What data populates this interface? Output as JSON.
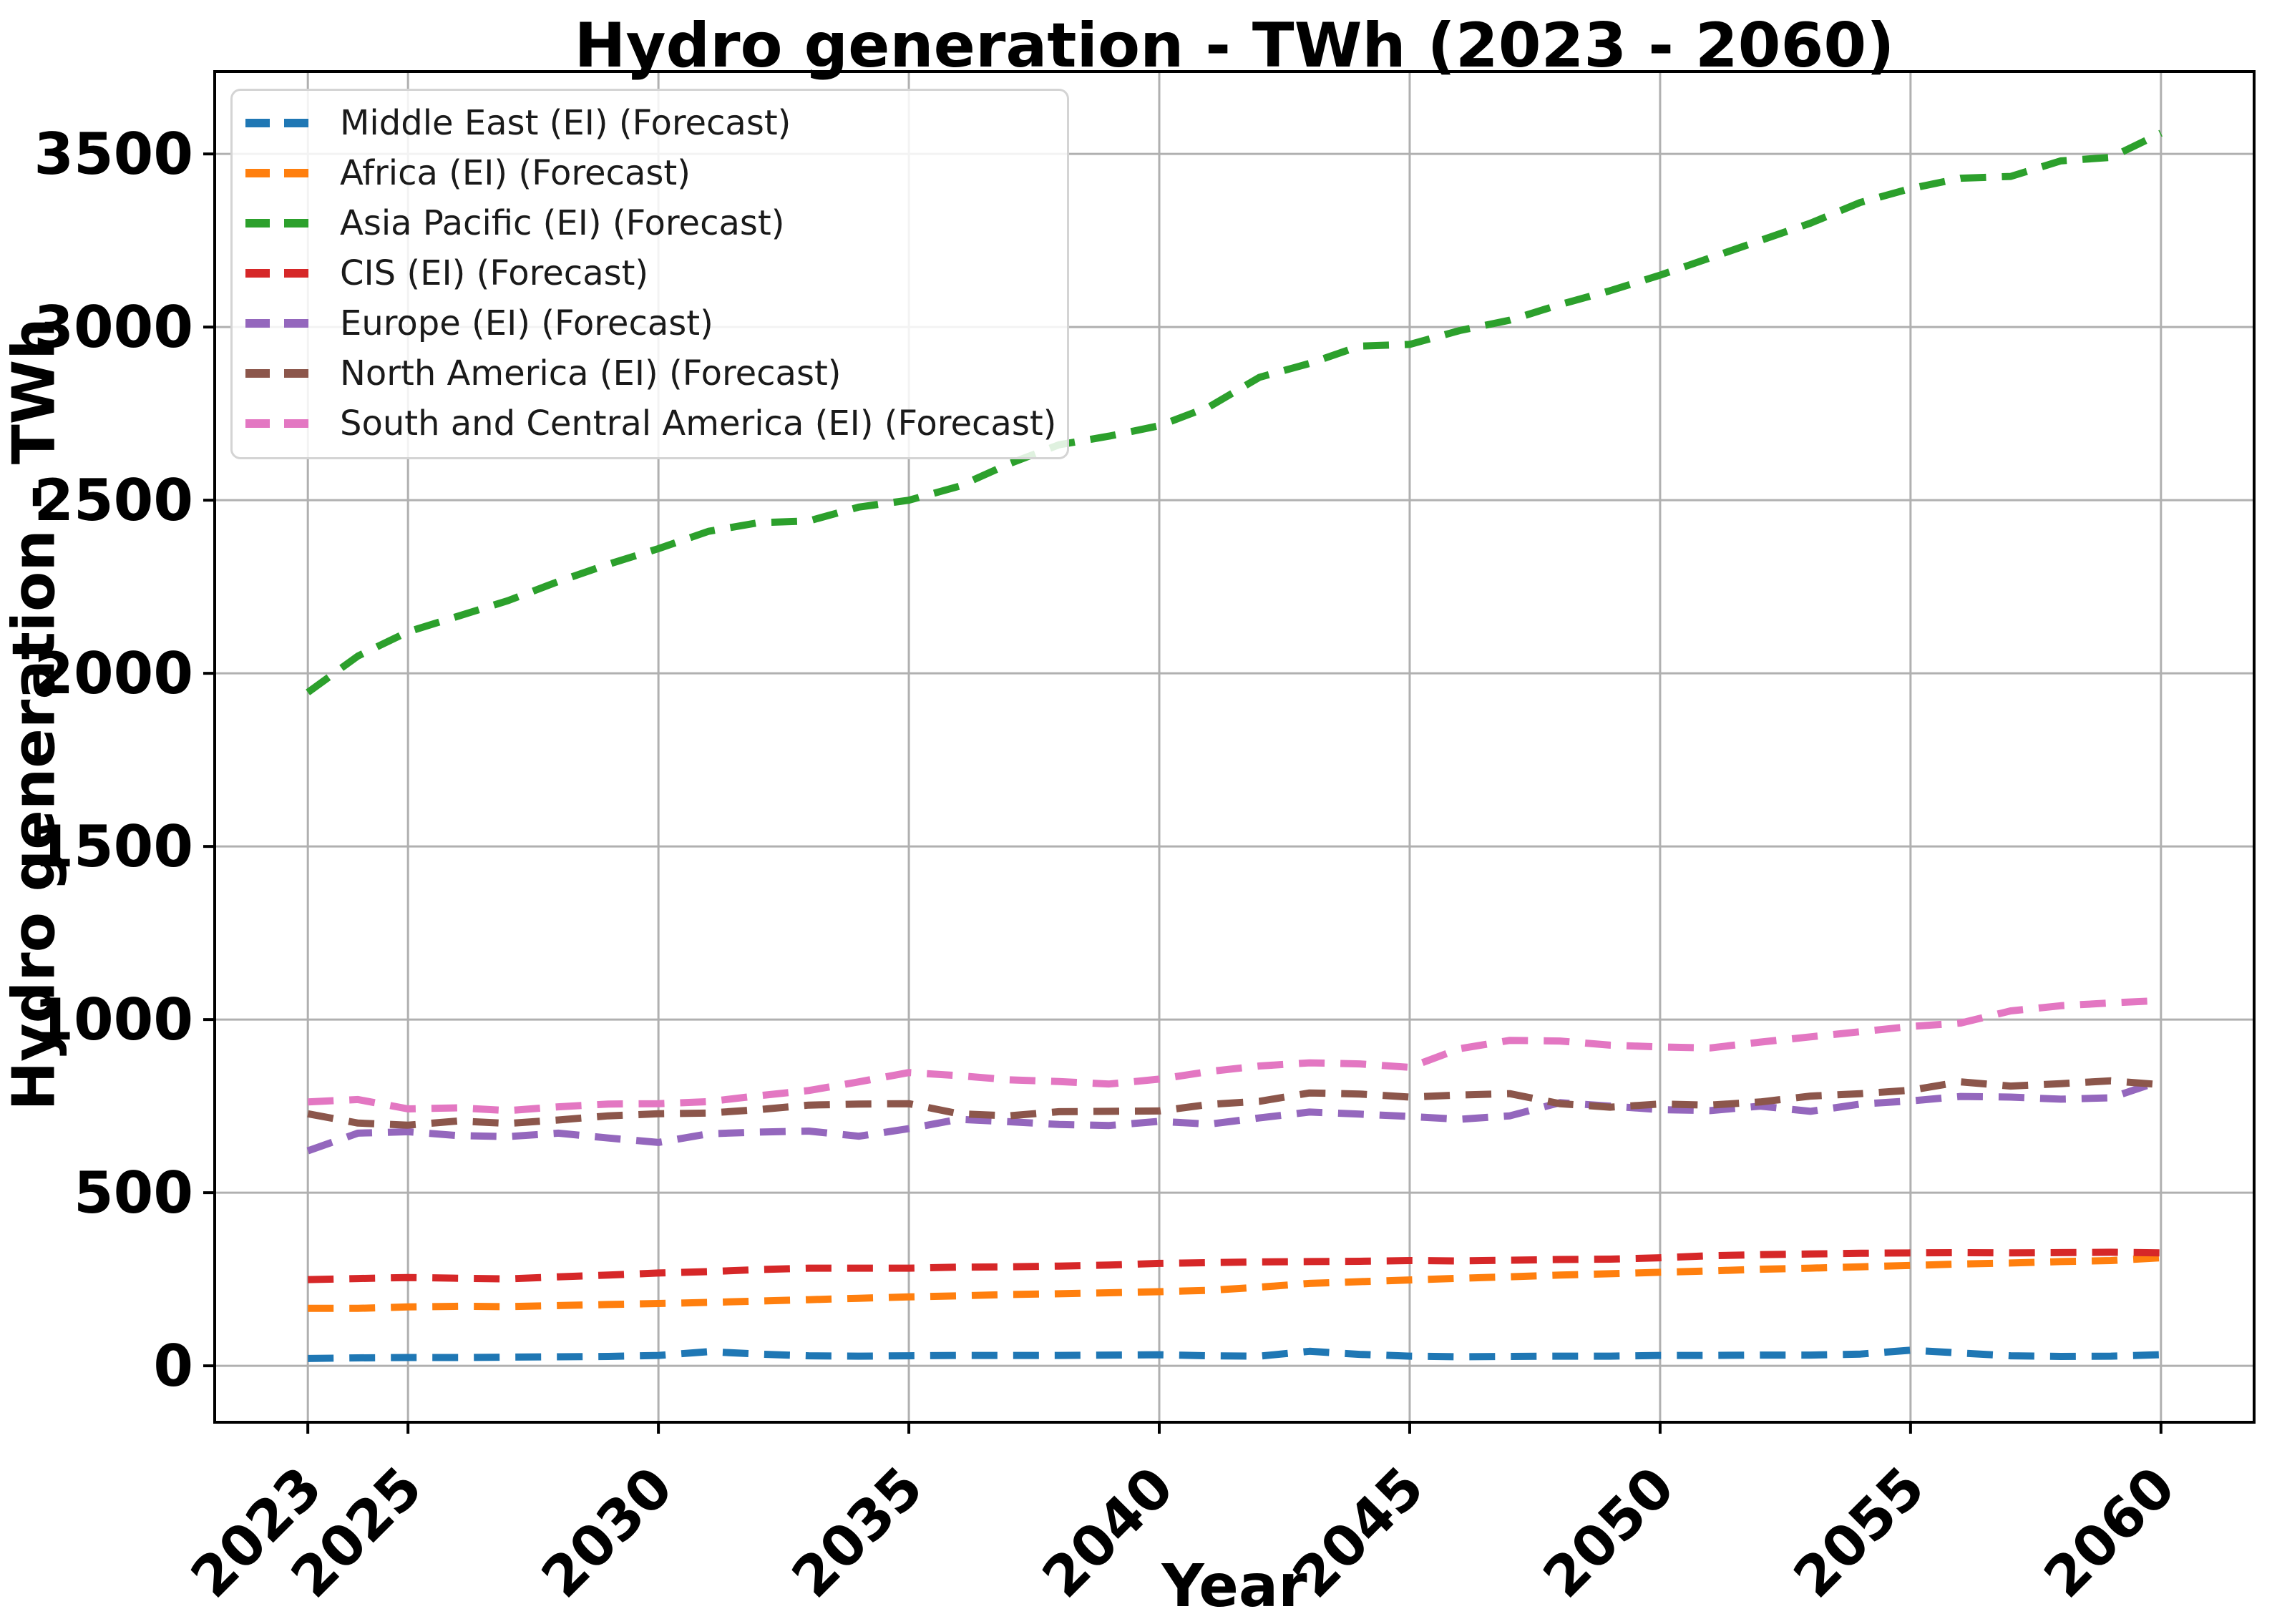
{
  "chart_data": {
    "type": "line",
    "title": "Hydro generation - TWh (2023 - 2060)",
    "xlabel": "Year",
    "ylabel": "Hydro generation - TWh",
    "line_style": "dashed",
    "grid": true,
    "legend_position": "upper left",
    "x": [
      2023,
      2024,
      2025,
      2026,
      2027,
      2028,
      2029,
      2030,
      2031,
      2032,
      2033,
      2034,
      2035,
      2036,
      2037,
      2038,
      2039,
      2040,
      2041,
      2042,
      2043,
      2044,
      2045,
      2046,
      2047,
      2048,
      2049,
      2050,
      2051,
      2052,
      2053,
      2054,
      2055,
      2056,
      2057,
      2058,
      2059,
      2060
    ],
    "xticks": [
      2023,
      2025,
      2030,
      2035,
      2040,
      2045,
      2050,
      2055,
      2060
    ],
    "yticks": [
      0,
      500,
      1000,
      1500,
      2000,
      2500,
      3000,
      3500
    ],
    "xlim": [
      2021.14,
      2061.86
    ],
    "ylim": [
      -163,
      3738
    ],
    "series": [
      {
        "name": "Middle East (EI) (Forecast)",
        "color": "#1f77b4",
        "values": [
          21,
          23,
          24,
          24,
          25,
          26,
          27,
          30,
          41,
          34,
          29,
          28,
          29,
          30,
          30,
          30,
          31,
          32,
          29,
          28,
          42,
          33,
          28,
          26,
          27,
          28,
          28,
          30,
          30,
          31,
          31,
          34,
          45,
          37,
          29,
          27,
          28,
          32
        ]
      },
      {
        "name": "Africa (EI) (Forecast)",
        "color": "#ff7f0e",
        "values": [
          166,
          166,
          170,
          172,
          171,
          174,
          177,
          180,
          183,
          187,
          191,
          195,
          199,
          202,
          206,
          208,
          211,
          214,
          218,
          227,
          238,
          243,
          248,
          253,
          257,
          262,
          266,
          270,
          274,
          279,
          282,
          286,
          290,
          294,
          297,
          301,
          304,
          312
        ]
      },
      {
        "name": "Asia Pacific (EI) (Forecast)",
        "color": "#2ca02c",
        "values": [
          1945,
          2050,
          2120,
          2165,
          2210,
          2265,
          2315,
          2360,
          2410,
          2435,
          2440,
          2480,
          2500,
          2540,
          2605,
          2660,
          2685,
          2715,
          2770,
          2855,
          2895,
          2945,
          2950,
          2990,
          3020,
          3065,
          3105,
          3150,
          3200,
          3250,
          3300,
          3360,
          3400,
          3430,
          3435,
          3480,
          3490,
          3560
        ]
      },
      {
        "name": "CIS (EI) (Forecast)",
        "color": "#d62728",
        "values": [
          249,
          252,
          255,
          253,
          251,
          257,
          262,
          268,
          272,
          278,
          282,
          282,
          282,
          285,
          286,
          288,
          291,
          296,
          298,
          300,
          301,
          302,
          304,
          303,
          305,
          307,
          308,
          312,
          318,
          321,
          323,
          325,
          326,
          327,
          326,
          327,
          328,
          326
        ]
      },
      {
        "name": "Europe (EI) (Forecast)",
        "color": "#9467bd",
        "values": [
          621,
          672,
          676,
          665,
          662,
          672,
          658,
          645,
          670,
          675,
          678,
          663,
          685,
          712,
          705,
          697,
          694,
          706,
          698,
          716,
          733,
          727,
          720,
          712,
          722,
          760,
          750,
          740,
          737,
          750,
          735,
          756,
          765,
          778,
          776,
          770,
          774,
          823
        ]
      },
      {
        "name": "North America (EI) (Forecast)",
        "color": "#8c564b",
        "values": [
          728,
          701,
          695,
          707,
          700,
          710,
          722,
          728,
          730,
          740,
          753,
          756,
          757,
          728,
          722,
          734,
          735,
          736,
          755,
          764,
          788,
          785,
          776,
          782,
          786,
          757,
          747,
          756,
          753,
          762,
          779,
          786,
          796,
          820,
          808,
          815,
          823,
          812
        ]
      },
      {
        "name": "South and Central America (EI) (Forecast)",
        "color": "#e377c2",
        "values": [
          762,
          769,
          742,
          745,
          737,
          748,
          756,
          757,
          763,
          780,
          795,
          820,
          847,
          838,
          826,
          821,
          814,
          828,
          850,
          866,
          875,
          872,
          862,
          916,
          940,
          938,
          926,
          921,
          918,
          935,
          950,
          965,
          980,
          990,
          1025,
          1040,
          1048,
          1055
        ]
      }
    ]
  }
}
